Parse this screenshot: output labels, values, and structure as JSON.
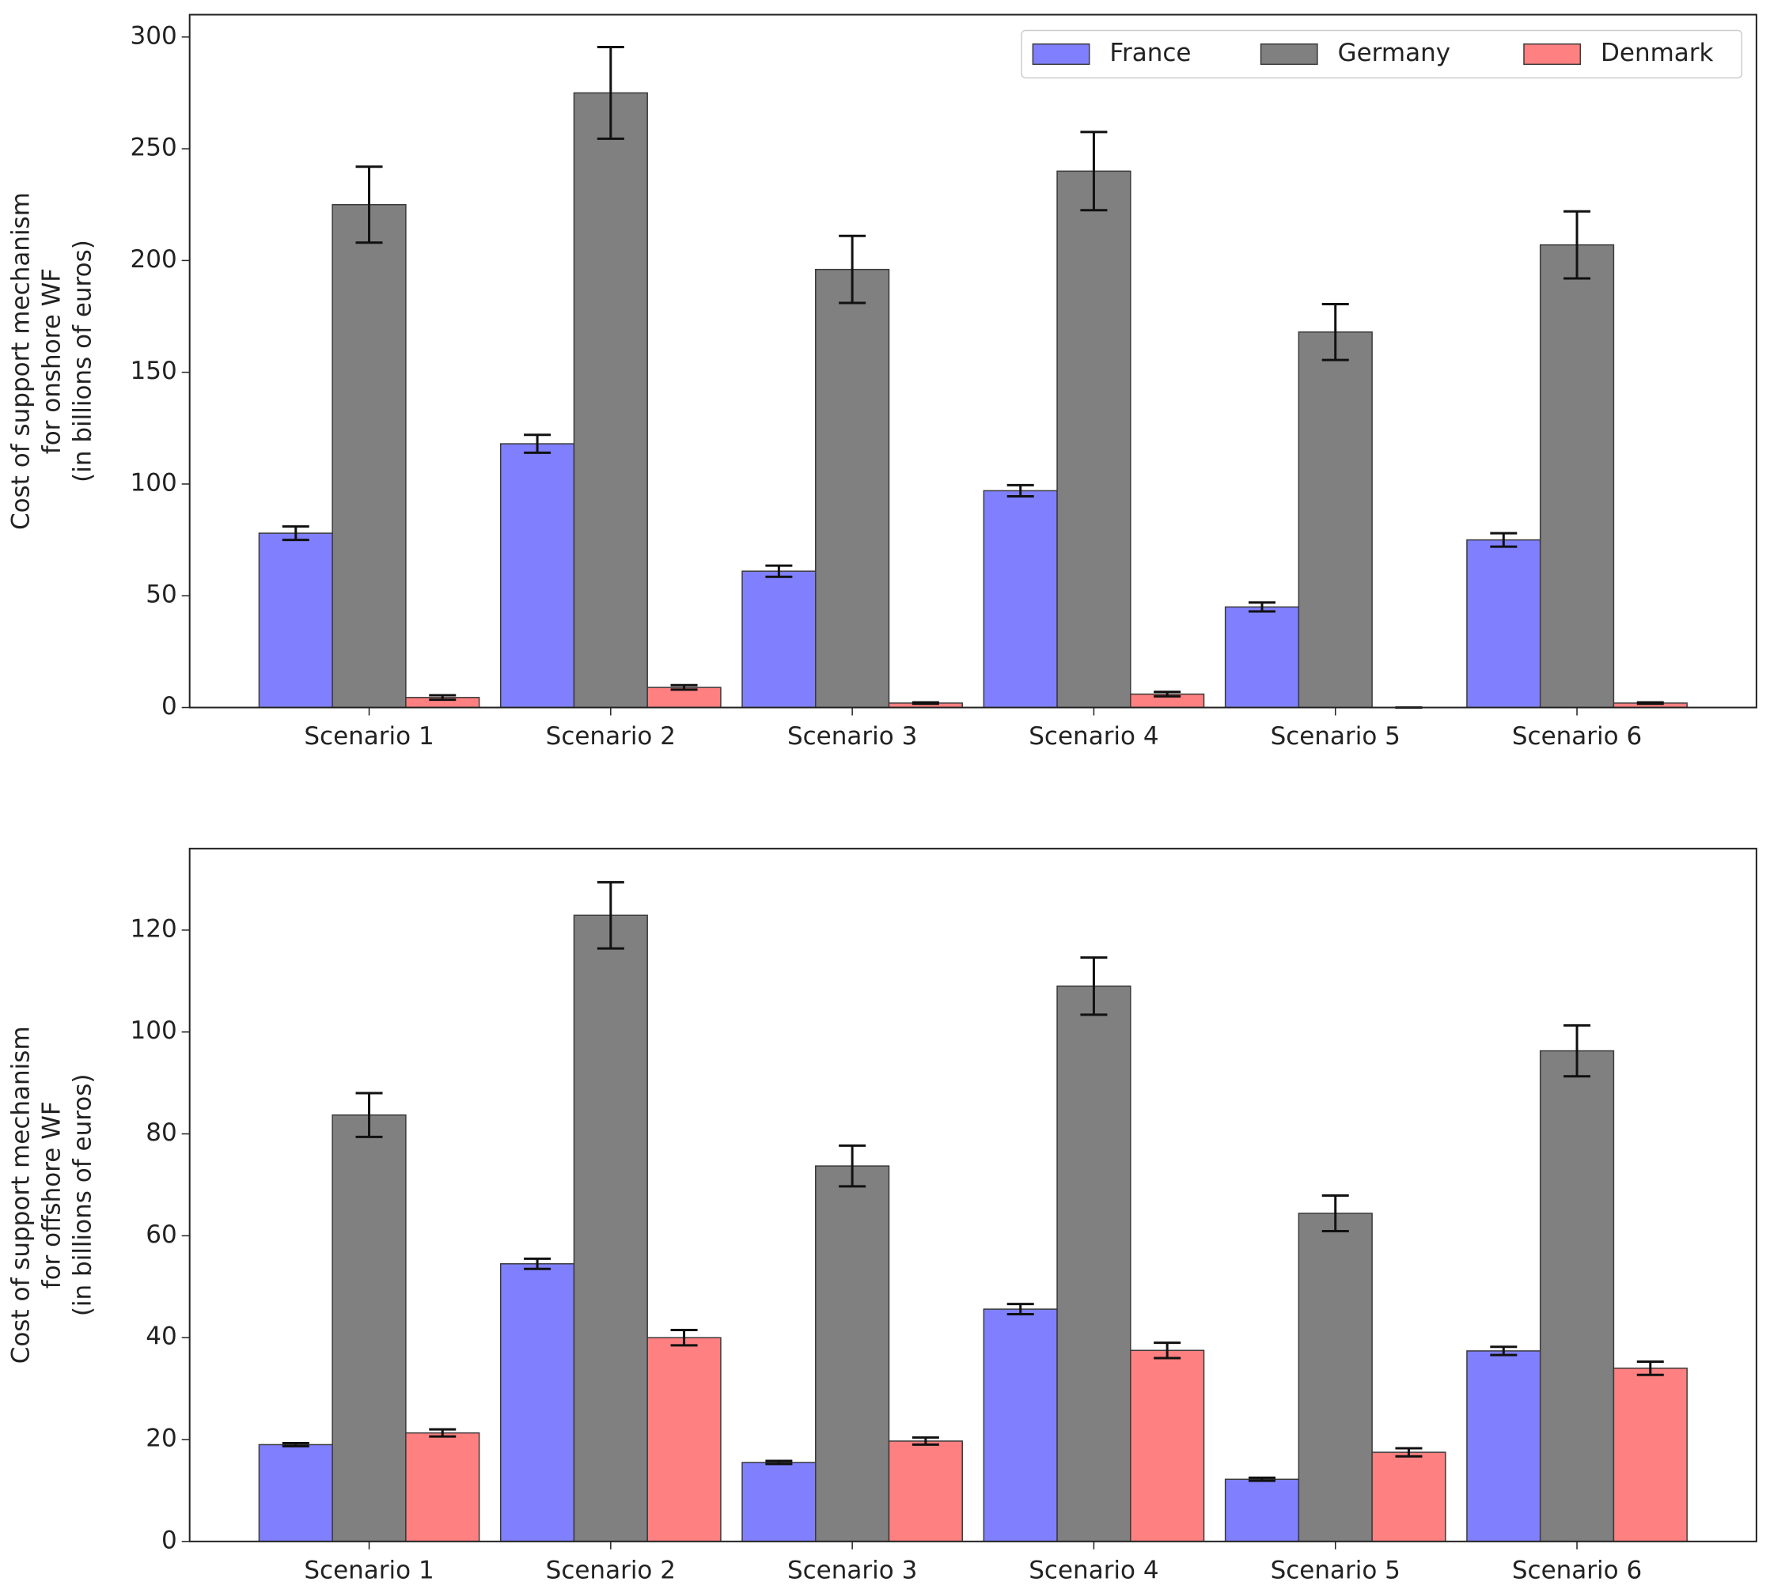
{
  "chart_data": [
    {
      "type": "bar",
      "ylabel": [
        "Cost of support mechanism",
        "for onshore WF",
        "(in billions of euros)"
      ],
      "categories": [
        "Scenario 1",
        "Scenario 2",
        "Scenario 3",
        "Scenario 4",
        "Scenario 5",
        "Scenario 6"
      ],
      "series": [
        {
          "name": "France",
          "color": "#8080ff",
          "values": [
            78,
            118,
            61,
            97,
            45,
            75
          ],
          "errors": [
            3,
            4,
            2.5,
            2.5,
            2,
            3
          ]
        },
        {
          "name": "Germany",
          "color": "#808080",
          "values": [
            225,
            275,
            196,
            240,
            168,
            207
          ],
          "errors": [
            17,
            20.5,
            15,
            17.5,
            12.5,
            15
          ]
        },
        {
          "name": "Denmark",
          "color": "#ff8080",
          "values": [
            4.5,
            9,
            2,
            6,
            0,
            2
          ],
          "errors": [
            1,
            1,
            0.3,
            1,
            0,
            0.3
          ]
        }
      ],
      "ylim": [
        0,
        310
      ],
      "yticks": [
        0,
        50,
        100,
        150,
        200,
        250,
        300
      ],
      "legend": "upper right"
    },
    {
      "type": "bar",
      "ylabel": [
        "Cost of support mechanism",
        "for offshore WF",
        "(in billions of euros)"
      ],
      "categories": [
        "Scenario 1",
        "Scenario 2",
        "Scenario 3",
        "Scenario 4",
        "Scenario 5",
        "Scenario 6"
      ],
      "series": [
        {
          "color": "#8080ff",
          "values": [
            19,
            54.5,
            15.5,
            45.6,
            12.2,
            37.4
          ],
          "errors": [
            0.3,
            1,
            0.3,
            1,
            0.3,
            0.8
          ]
        },
        {
          "color": "#808080",
          "values": [
            83.7,
            122.9,
            73.7,
            109,
            64.4,
            96.3
          ],
          "errors": [
            4.3,
            6.5,
            4,
            5.6,
            3.5,
            5
          ]
        },
        {
          "color": "#ff8080",
          "values": [
            21.3,
            40,
            19.7,
            37.5,
            17.5,
            34
          ],
          "errors": [
            0.7,
            1.5,
            0.7,
            1.5,
            0.8,
            1.3
          ]
        }
      ],
      "ylim": [
        0,
        136
      ],
      "yticks": [
        0,
        20,
        40,
        60,
        80,
        100,
        120
      ]
    }
  ]
}
